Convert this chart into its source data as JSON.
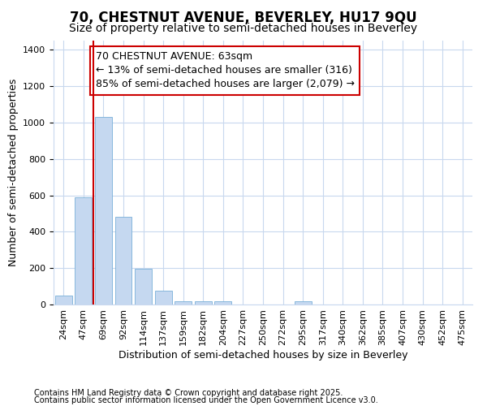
{
  "title_line1": "70, CHESTNUT AVENUE, BEVERLEY, HU17 9QU",
  "title_line2": "Size of property relative to semi-detached houses in Beverley",
  "xlabel": "Distribution of semi-detached houses by size in Beverley",
  "ylabel": "Number of semi-detached properties",
  "categories": [
    "24sqm",
    "47sqm",
    "69sqm",
    "92sqm",
    "114sqm",
    "137sqm",
    "159sqm",
    "182sqm",
    "204sqm",
    "227sqm",
    "250sqm",
    "272sqm",
    "295sqm",
    "317sqm",
    "340sqm",
    "362sqm",
    "385sqm",
    "407sqm",
    "430sqm",
    "452sqm",
    "475sqm"
  ],
  "values": [
    47,
    590,
    1030,
    480,
    195,
    75,
    20,
    20,
    20,
    0,
    0,
    0,
    20,
    0,
    0,
    0,
    0,
    0,
    0,
    0,
    0
  ],
  "bar_color": "#c5d8f0",
  "bar_edge_color": "#7ab0d8",
  "vline_x_index": 2,
  "vline_color": "#cc0000",
  "annotation_text": "70 CHESTNUT AVENUE: 63sqm\n← 13% of semi-detached houses are smaller (316)\n85% of semi-detached houses are larger (2,079) →",
  "annotation_box_facecolor": "white",
  "annotation_box_edgecolor": "#cc0000",
  "background_color": "#ffffff",
  "plot_bg_color": "#ffffff",
  "ylim": [
    0,
    1450
  ],
  "yticks": [
    0,
    200,
    400,
    600,
    800,
    1000,
    1200,
    1400
  ],
  "footer_line1": "Contains HM Land Registry data © Crown copyright and database right 2025.",
  "footer_line2": "Contains public sector information licensed under the Open Government Licence v3.0.",
  "title_fontsize": 12,
  "subtitle_fontsize": 10,
  "axis_label_fontsize": 9,
  "tick_fontsize": 8,
  "annotation_fontsize": 9,
  "footer_fontsize": 7
}
